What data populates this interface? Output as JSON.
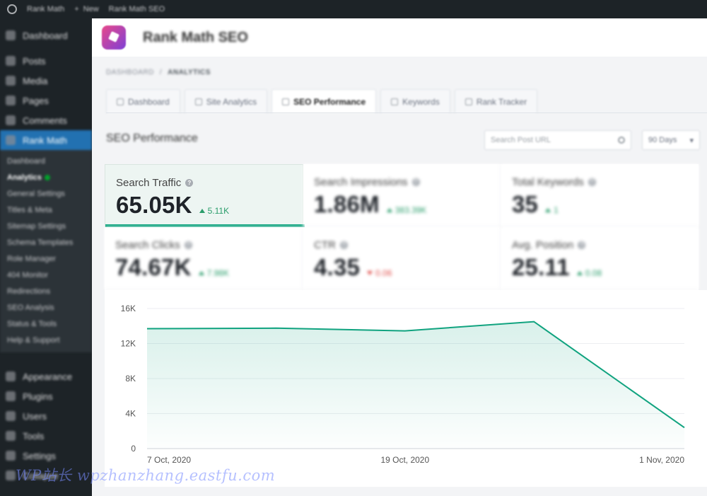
{
  "adminbar": {
    "items": [
      "Rank Math",
      "New",
      "Rank Math SEO"
    ]
  },
  "sidebar": {
    "items": [
      "Dashboard",
      "Posts",
      "Media",
      "Pages",
      "Comments",
      "Rank Math"
    ],
    "submenu": [
      "Dashboard",
      "Analytics",
      "General Settings",
      "Titles & Meta",
      "Sitemap Settings",
      "Schema Templates",
      "Role Manager",
      "404 Monitor",
      "Redirections",
      "SEO Analysis",
      "Status & Tools",
      "Help & Support"
    ],
    "bottom_items": [
      "Appearance",
      "Plugins",
      "Users",
      "Tools",
      "Settings",
      "Collapse"
    ]
  },
  "header": {
    "title": "Rank Math SEO"
  },
  "breadcrumb": [
    "DASHBOARD",
    "/",
    "ANALYTICS"
  ],
  "tabs": [
    {
      "label": "Dashboard"
    },
    {
      "label": "Site Analytics"
    },
    {
      "label": "SEO Performance",
      "active": true
    },
    {
      "label": "Keywords"
    },
    {
      "label": "Rank Tracker"
    }
  ],
  "section": {
    "title": "SEO Performance",
    "search_placeholder": "Search Post URL",
    "range": "90 Days"
  },
  "stats": [
    {
      "label": "Search Traffic",
      "value": "65.05K",
      "delta": "5.11K",
      "direction": "up"
    },
    {
      "label": "Search Impressions",
      "value": "1.86M",
      "delta": "383.39K",
      "direction": "up"
    },
    {
      "label": "Total Keywords",
      "value": "35",
      "delta": "1",
      "direction": "up"
    },
    {
      "label": "Search Clicks",
      "value": "74.67K",
      "delta": "7.98K",
      "direction": "up"
    },
    {
      "label": "CTR",
      "value": "4.35",
      "delta": "0.06",
      "direction": "down"
    },
    {
      "label": "Avg. Position",
      "value": "25.11",
      "delta": "0.08",
      "direction": "up"
    }
  ],
  "chart_data": {
    "type": "area",
    "series": [
      {
        "values": [
          13700,
          13750,
          13450,
          14500,
          2400
        ]
      }
    ],
    "x": [
      "2020-10-07",
      "2020-10-13",
      "2020-10-19",
      "2020-10-25",
      "2020-11-01"
    ],
    "x_tick_labels": [
      "7 Oct, 2020",
      "19 Oct, 2020",
      "1 Nov, 2020"
    ],
    "y_tick_labels": [
      "0",
      "4K",
      "8K",
      "12K",
      "16K"
    ],
    "y_ticks": [
      0,
      4000,
      8000,
      12000,
      16000
    ],
    "ylim": [
      0,
      16000
    ],
    "grid": true,
    "line_color": "#10a37f"
  },
  "watermark": "WP站长 wpzhanzhang.eastfu.com"
}
